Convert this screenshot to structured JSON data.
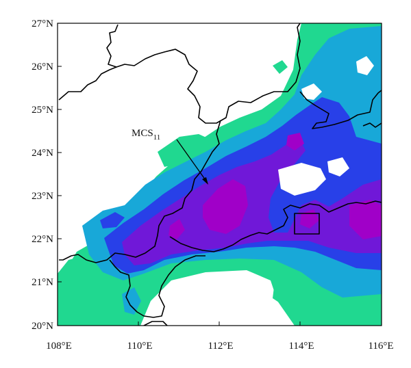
{
  "map": {
    "lat_labels": [
      "27°N",
      "26°N",
      "25°N",
      "24°N",
      "23°N",
      "22°N",
      "21°N",
      "20°N"
    ],
    "lon_labels": [
      "108°E",
      "110°E",
      "112°E",
      "114°E",
      "116°E"
    ],
    "annotation": {
      "main": "MCS",
      "subscript": "11"
    },
    "extent": {
      "lon": [
        108,
        116
      ],
      "lat": [
        20,
        27
      ]
    },
    "colors": {
      "level1": "#20d890",
      "level2": "#18a8d8",
      "level3": "#2840e8",
      "level4": "#7018d8",
      "level5": "#a000c8",
      "boundary": "#000000",
      "background": "#ffffff"
    }
  }
}
